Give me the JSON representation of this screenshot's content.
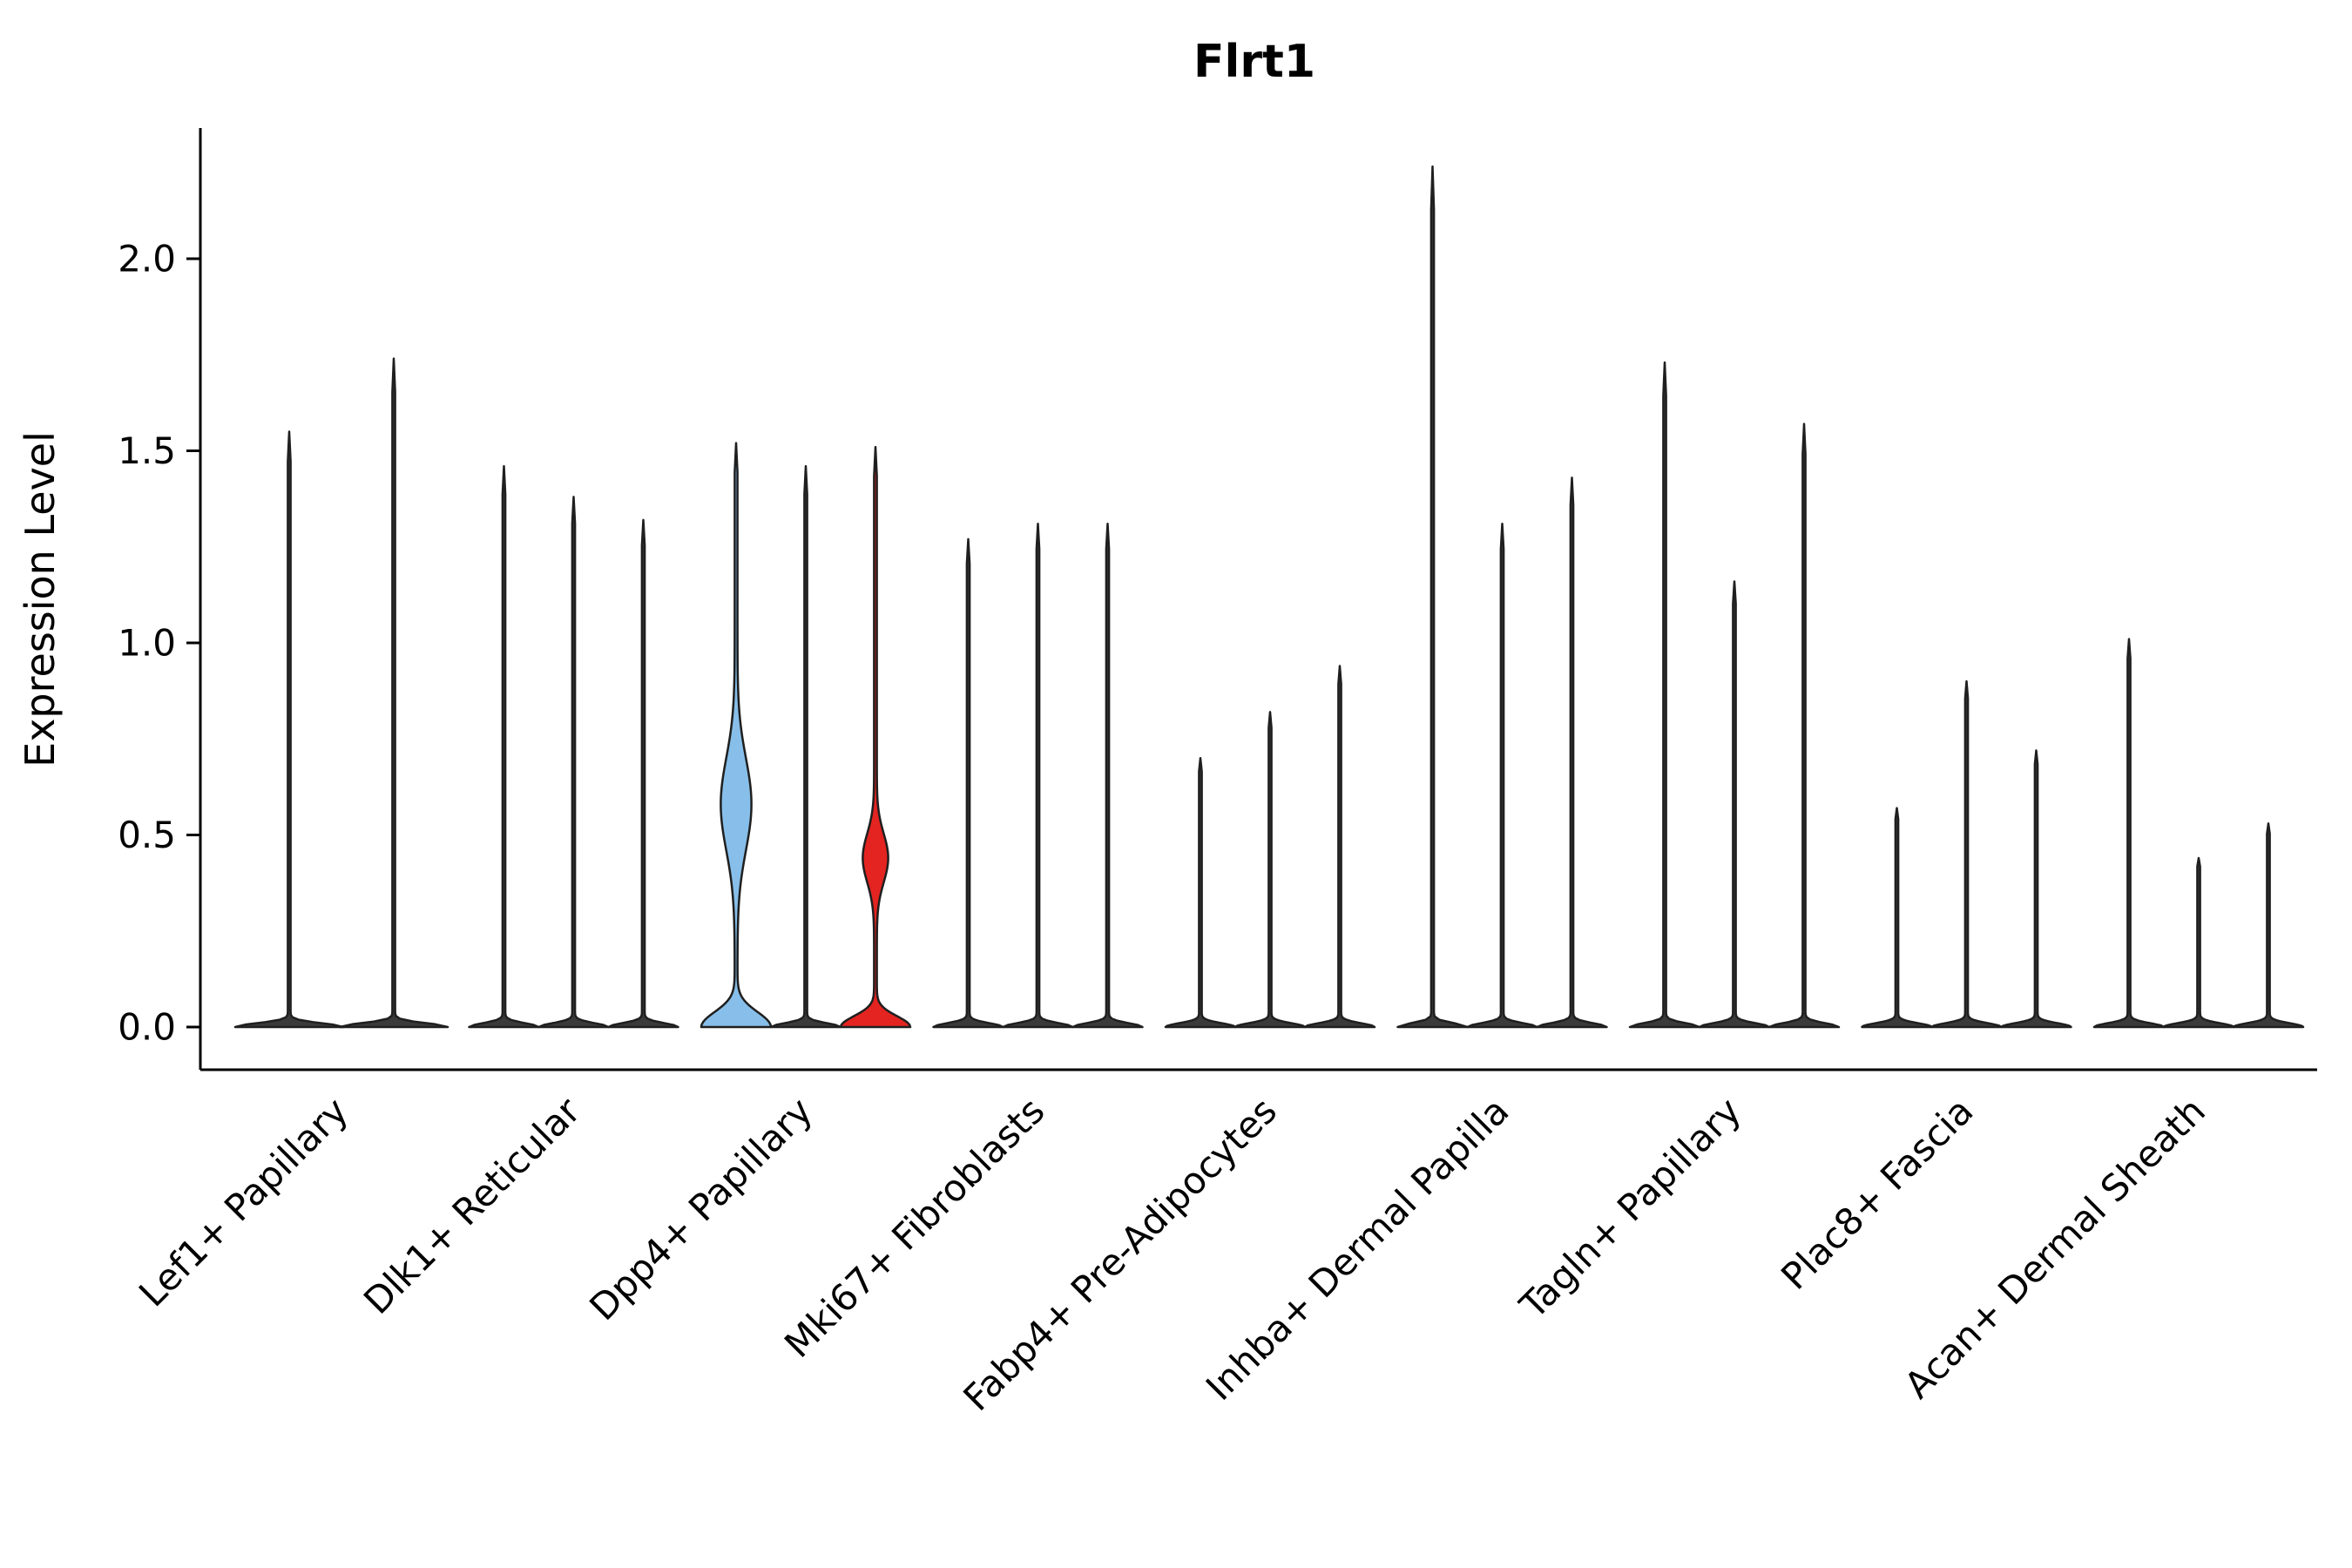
{
  "chart_data": {
    "type": "violin",
    "title": "Flrt1",
    "ylabel": "Expression Level",
    "xlabel": "",
    "ylim": [
      -0.11,
      2.34
    ],
    "yticks": [
      0,
      0.5,
      1,
      1.5,
      2
    ],
    "ytick_labels": [
      "0.0",
      "0.5",
      "1.0",
      "1.5",
      "2.0"
    ],
    "grid": false,
    "legend": "none",
    "colors": {
      "default_violin_fill": "#3a3a3a",
      "violin_stroke": "#1f1f1f",
      "blue": "#87bfea",
      "red": "#e32421",
      "axis": "#000000"
    },
    "groups": [
      {
        "label": "Lef1+ Papillary",
        "slot_halfwidth": 62,
        "offsets": [
          -60,
          60
        ],
        "violins": [
          {
            "max": 1.55
          },
          {
            "max": 1.74
          }
        ]
      },
      {
        "label": "Dlk1+ Reticular",
        "slot_halfwidth": 40,
        "offsets": [
          -80,
          0,
          80
        ],
        "violins": [
          {
            "max": 1.46
          },
          {
            "max": 1.38
          },
          {
            "max": 1.32
          }
        ]
      },
      {
        "label": "Dpp4+ Papillary",
        "slot_halfwidth": 40,
        "offsets": [
          -80,
          0,
          80
        ],
        "violins": [
          {
            "max": 1.52,
            "fill": "blue",
            "base_sigma": 0.055,
            "bulges": [
              {
                "c": 0.58,
                "s": 0.17,
                "hw": 16
              }
            ]
          },
          {
            "max": 1.46
          },
          {
            "max": 1.51,
            "fill": "red",
            "base_sigma": 0.04,
            "bulges": [
              {
                "c": 0.44,
                "s": 0.09,
                "hw": 13
              }
            ]
          }
        ]
      },
      {
        "label": "Mki67+ Fibroblasts",
        "slot_halfwidth": 40,
        "offsets": [
          -80,
          0,
          80
        ],
        "violins": [
          {
            "max": 1.27
          },
          {
            "max": 1.31
          },
          {
            "max": 1.31
          }
        ]
      },
      {
        "label": "Fabp4+ Pre-Adipocytes",
        "slot_halfwidth": 40,
        "offsets": [
          -80,
          0,
          80
        ],
        "violins": [
          {
            "max": 0.7
          },
          {
            "max": 0.82
          },
          {
            "max": 0.94
          }
        ]
      },
      {
        "label": "Inhba+ Dermal Papilla",
        "slot_halfwidth": 40,
        "offsets": [
          -80,
          0,
          80
        ],
        "violins": [
          {
            "max": 2.24
          },
          {
            "max": 1.31
          },
          {
            "max": 1.43
          }
        ]
      },
      {
        "label": "Tagln+ Papillary",
        "slot_halfwidth": 40,
        "offsets": [
          -80,
          0,
          80
        ],
        "violins": [
          {
            "max": 1.73
          },
          {
            "max": 1.16
          },
          {
            "max": 1.57
          }
        ]
      },
      {
        "label": "Plac8+ Fascia",
        "slot_halfwidth": 40,
        "offsets": [
          -80,
          0,
          80
        ],
        "violins": [
          {
            "max": 0.57
          },
          {
            "max": 0.9
          },
          {
            "max": 0.72
          }
        ]
      },
      {
        "label": "Acan+ Dermal Sheath",
        "slot_halfwidth": 40,
        "offsets": [
          -80,
          0,
          80
        ],
        "violins": [
          {
            "max": 1.01
          },
          {
            "max": 0.44
          },
          {
            "max": 0.53
          }
        ]
      }
    ]
  }
}
